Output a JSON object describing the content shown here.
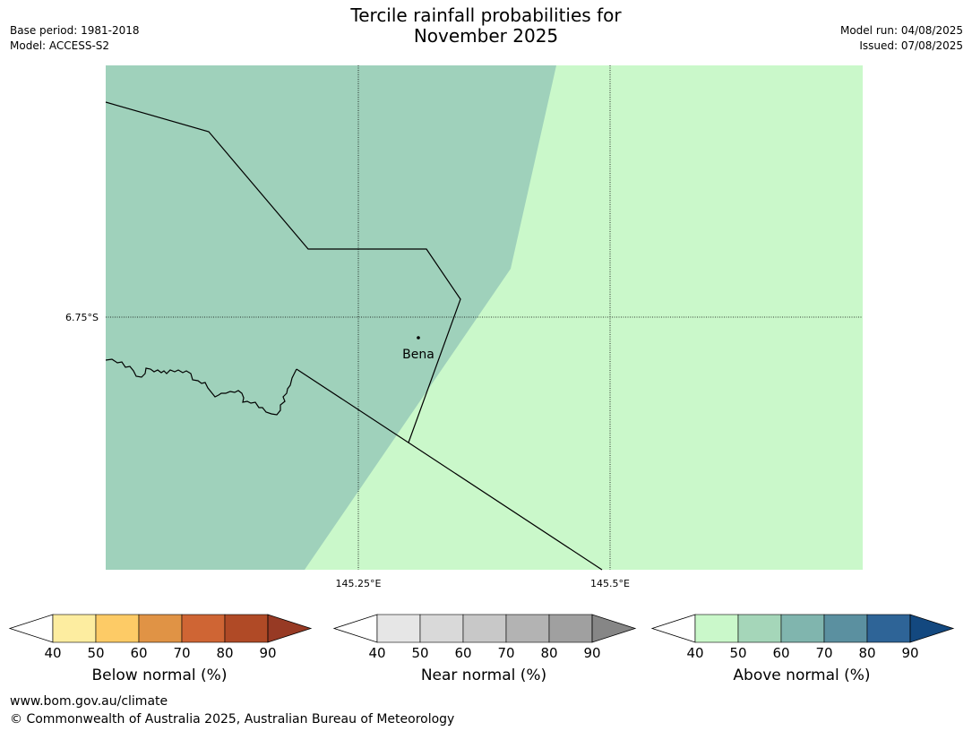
{
  "title_line1": "Tercile rainfall probabilities for",
  "title_line2": "November 2025",
  "meta_left": {
    "base_period": "Base period: 1981-2018",
    "model": "Model: ACCESS-S2"
  },
  "meta_right": {
    "model_run": "Model run: 04/08/2025",
    "issued": "Issued: 07/08/2025"
  },
  "map": {
    "lat_label": "6.75°S",
    "lon_labels": [
      "145.25°E",
      "145.5°E"
    ],
    "town": "Bena",
    "colors": {
      "above_50_60": "#9fd1bb",
      "above_40_50": "#caf8ca",
      "boundary": "#000000"
    }
  },
  "colorbars": [
    {
      "name": "below",
      "label": "Below normal (%)",
      "ticks": [
        "40",
        "50",
        "60",
        "70",
        "80",
        "90"
      ],
      "colors": [
        "#fdeda0",
        "#fdcb66",
        "#e09345",
        "#cf6534",
        "#b04a26"
      ],
      "extend_color": "#973a24"
    },
    {
      "name": "near",
      "label": "Near normal (%)",
      "ticks": [
        "40",
        "50",
        "60",
        "70",
        "80",
        "90"
      ],
      "colors": [
        "#e6e6e6",
        "#d9d9d9",
        "#c8c8c8",
        "#b3b3b3",
        "#a0a0a0"
      ],
      "extend_color": "#868686"
    },
    {
      "name": "above",
      "label": "Above normal (%)",
      "ticks": [
        "40",
        "50",
        "60",
        "70",
        "80",
        "90"
      ],
      "colors": [
        "#caf8ca",
        "#a5d6b9",
        "#80b5ae",
        "#5b90a0",
        "#2e6497"
      ],
      "extend_color": "#13487f"
    }
  ],
  "footer": {
    "url": "www.bom.gov.au/climate",
    "copyright": "© Commonwealth of Australia 2025, Australian Bureau of Meteorology"
  }
}
